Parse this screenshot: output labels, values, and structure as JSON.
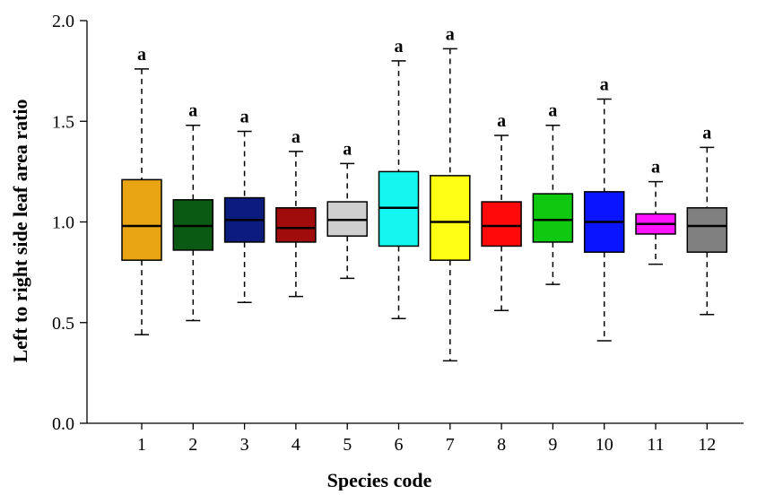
{
  "chart_data": {
    "type": "boxplot",
    "xlabel": "Species code",
    "ylabel": "Left to right side leaf area ratio",
    "ylim": [
      0.0,
      2.0
    ],
    "yticks": [
      "0.0",
      "0.5",
      "1.0",
      "1.5",
      "2.0"
    ],
    "ytick_values": [
      0.0,
      0.5,
      1.0,
      1.5,
      2.0
    ],
    "categories": [
      "1",
      "2",
      "3",
      "4",
      "5",
      "6",
      "7",
      "8",
      "9",
      "10",
      "11",
      "12"
    ],
    "boxes": [
      {
        "category": "1",
        "min": 0.44,
        "q1": 0.81,
        "median": 0.98,
        "q3": 1.21,
        "max": 1.76,
        "color": "#E8A413",
        "label": "a"
      },
      {
        "category": "2",
        "min": 0.51,
        "q1": 0.86,
        "median": 0.98,
        "q3": 1.11,
        "max": 1.48,
        "color": "#0B5A14",
        "label": "a"
      },
      {
        "category": "3",
        "min": 0.6,
        "q1": 0.9,
        "median": 1.01,
        "q3": 1.12,
        "max": 1.45,
        "color": "#0B1C7E",
        "label": "a"
      },
      {
        "category": "4",
        "min": 0.63,
        "q1": 0.9,
        "median": 0.97,
        "q3": 1.07,
        "max": 1.35,
        "color": "#A00B0B",
        "label": "a"
      },
      {
        "category": "5",
        "min": 0.72,
        "q1": 0.93,
        "median": 1.01,
        "q3": 1.1,
        "max": 1.29,
        "color": "#CFCFCF",
        "label": "a"
      },
      {
        "category": "6",
        "min": 0.52,
        "q1": 0.88,
        "median": 1.07,
        "q3": 1.25,
        "max": 1.8,
        "color": "#14F7F0",
        "label": "a"
      },
      {
        "category": "7",
        "min": 0.31,
        "q1": 0.81,
        "median": 1.0,
        "q3": 1.23,
        "max": 1.86,
        "color": "#FFFF14",
        "label": "a"
      },
      {
        "category": "8",
        "min": 0.56,
        "q1": 0.88,
        "median": 0.98,
        "q3": 1.1,
        "max": 1.43,
        "color": "#FF0A0A",
        "label": "a"
      },
      {
        "category": "9",
        "min": 0.69,
        "q1": 0.9,
        "median": 1.01,
        "q3": 1.14,
        "max": 1.48,
        "color": "#0EC910",
        "label": "a"
      },
      {
        "category": "10",
        "min": 0.41,
        "q1": 0.85,
        "median": 1.0,
        "q3": 1.15,
        "max": 1.61,
        "color": "#0A14FF",
        "label": "a"
      },
      {
        "category": "11",
        "min": 0.79,
        "q1": 0.94,
        "median": 0.99,
        "q3": 1.04,
        "max": 1.2,
        "color": "#FF12FF",
        "label": "a"
      },
      {
        "category": "12",
        "min": 0.54,
        "q1": 0.85,
        "median": 0.98,
        "q3": 1.07,
        "max": 1.37,
        "color": "#808080",
        "label": "a"
      }
    ],
    "grid": false,
    "legend": "none"
  }
}
